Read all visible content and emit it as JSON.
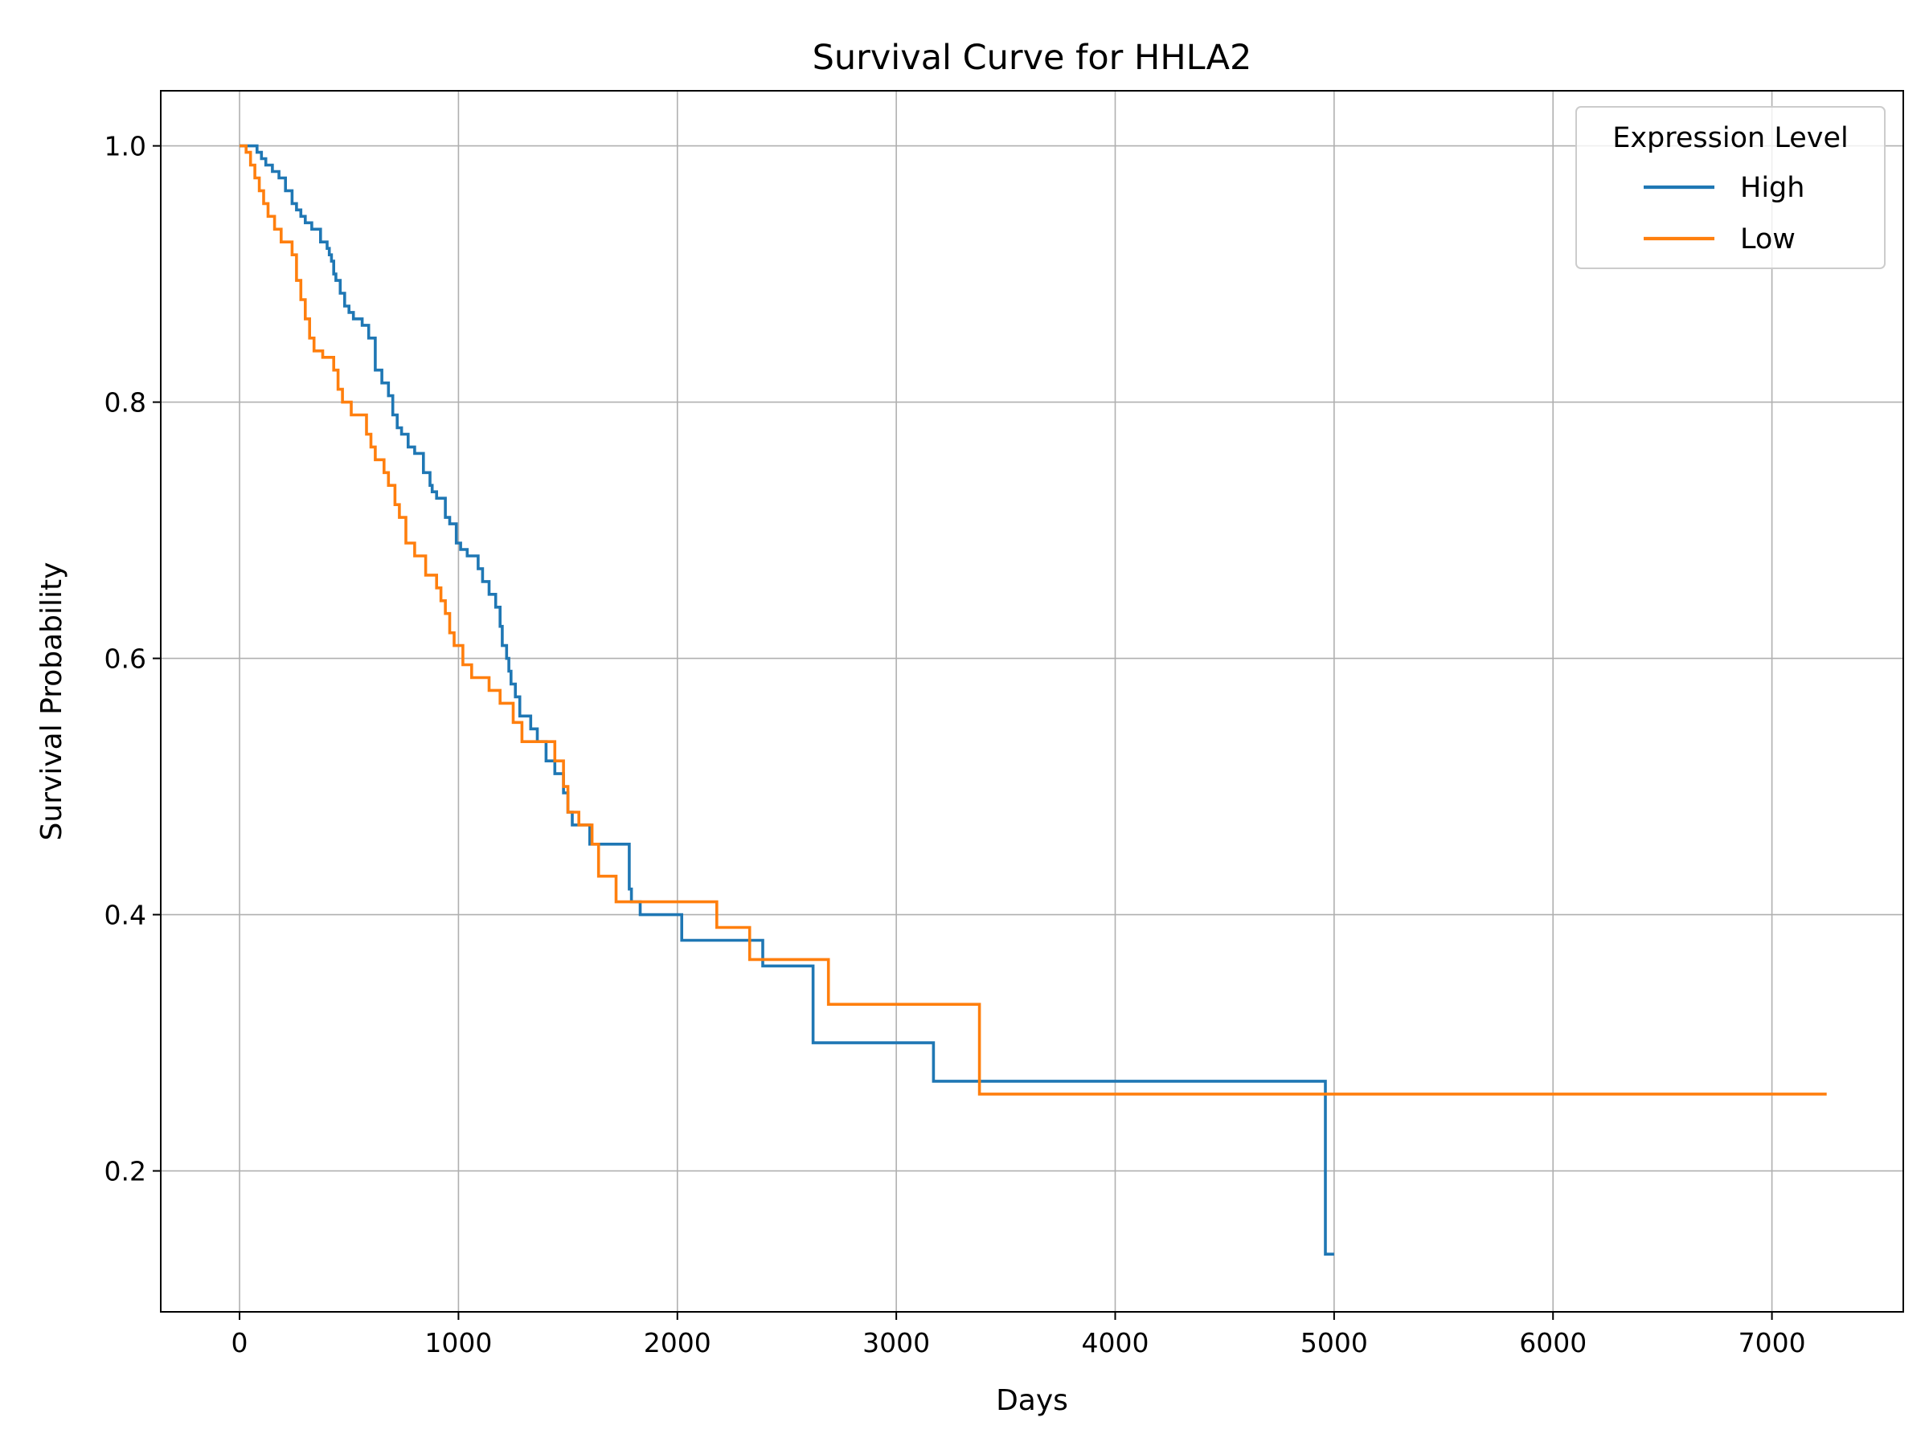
{
  "chart_data": {
    "type": "line",
    "title": "Survival Curve for HHLA2",
    "xlabel": "Days",
    "ylabel": "Survival Probability",
    "xlim": [
      -360,
      7600
    ],
    "ylim": [
      0.09,
      1.043
    ],
    "xticks": [
      0,
      1000,
      2000,
      3000,
      4000,
      5000,
      6000,
      7000
    ],
    "xtick_labels": [
      "0",
      "1000",
      "2000",
      "3000",
      "4000",
      "5000",
      "6000",
      "7000"
    ],
    "yticks": [
      0.2,
      0.4,
      0.6,
      0.8,
      1.0
    ],
    "ytick_labels": [
      "0.2",
      "0.4",
      "0.6",
      "0.8",
      "1.0"
    ],
    "grid": true,
    "step": "post",
    "legend": {
      "title": "Expression Level",
      "placement": "top-right"
    },
    "series": [
      {
        "name": "High",
        "color": "#1f77b4",
        "x": [
          0,
          80,
          100,
          120,
          150,
          180,
          210,
          240,
          260,
          280,
          300,
          330,
          370,
          400,
          410,
          420,
          430,
          440,
          460,
          480,
          500,
          520,
          560,
          590,
          620,
          650,
          680,
          700,
          720,
          740,
          770,
          800,
          840,
          870,
          880,
          900,
          940,
          960,
          990,
          1010,
          1040,
          1090,
          1110,
          1140,
          1170,
          1190,
          1200,
          1220,
          1230,
          1240,
          1260,
          1280,
          1330,
          1360,
          1400,
          1440,
          1480,
          1500,
          1520,
          1600,
          1780,
          1790,
          1830,
          2020,
          2390,
          2620,
          3170,
          4960,
          5000
        ],
        "y": [
          1.0,
          0.995,
          0.99,
          0.985,
          0.98,
          0.975,
          0.965,
          0.955,
          0.95,
          0.945,
          0.94,
          0.935,
          0.925,
          0.92,
          0.915,
          0.91,
          0.9,
          0.895,
          0.885,
          0.875,
          0.87,
          0.865,
          0.86,
          0.85,
          0.825,
          0.815,
          0.805,
          0.79,
          0.78,
          0.775,
          0.765,
          0.76,
          0.745,
          0.735,
          0.73,
          0.725,
          0.71,
          0.705,
          0.69,
          0.685,
          0.68,
          0.67,
          0.66,
          0.65,
          0.64,
          0.625,
          0.61,
          0.6,
          0.59,
          0.58,
          0.57,
          0.555,
          0.545,
          0.535,
          0.52,
          0.51,
          0.495,
          0.48,
          0.47,
          0.455,
          0.42,
          0.41,
          0.4,
          0.38,
          0.36,
          0.3,
          0.27,
          0.135,
          0.135
        ]
      },
      {
        "name": "Low",
        "color": "#ff7f0e",
        "x": [
          0,
          30,
          50,
          70,
          90,
          110,
          130,
          160,
          190,
          240,
          260,
          280,
          300,
          320,
          340,
          380,
          430,
          450,
          470,
          510,
          580,
          600,
          620,
          660,
          680,
          710,
          730,
          760,
          800,
          850,
          900,
          920,
          940,
          960,
          980,
          1020,
          1060,
          1140,
          1190,
          1250,
          1290,
          1440,
          1480,
          1500,
          1550,
          1610,
          1640,
          1720,
          2180,
          2330,
          2690,
          3380,
          7250
        ],
        "y": [
          1.0,
          0.995,
          0.985,
          0.975,
          0.965,
          0.955,
          0.945,
          0.935,
          0.925,
          0.915,
          0.895,
          0.88,
          0.865,
          0.85,
          0.84,
          0.835,
          0.825,
          0.81,
          0.8,
          0.79,
          0.775,
          0.765,
          0.755,
          0.745,
          0.735,
          0.72,
          0.71,
          0.69,
          0.68,
          0.665,
          0.655,
          0.645,
          0.635,
          0.62,
          0.61,
          0.595,
          0.585,
          0.575,
          0.565,
          0.55,
          0.535,
          0.52,
          0.5,
          0.48,
          0.47,
          0.455,
          0.43,
          0.41,
          0.39,
          0.365,
          0.33,
          0.26,
          0.26
        ]
      }
    ]
  }
}
